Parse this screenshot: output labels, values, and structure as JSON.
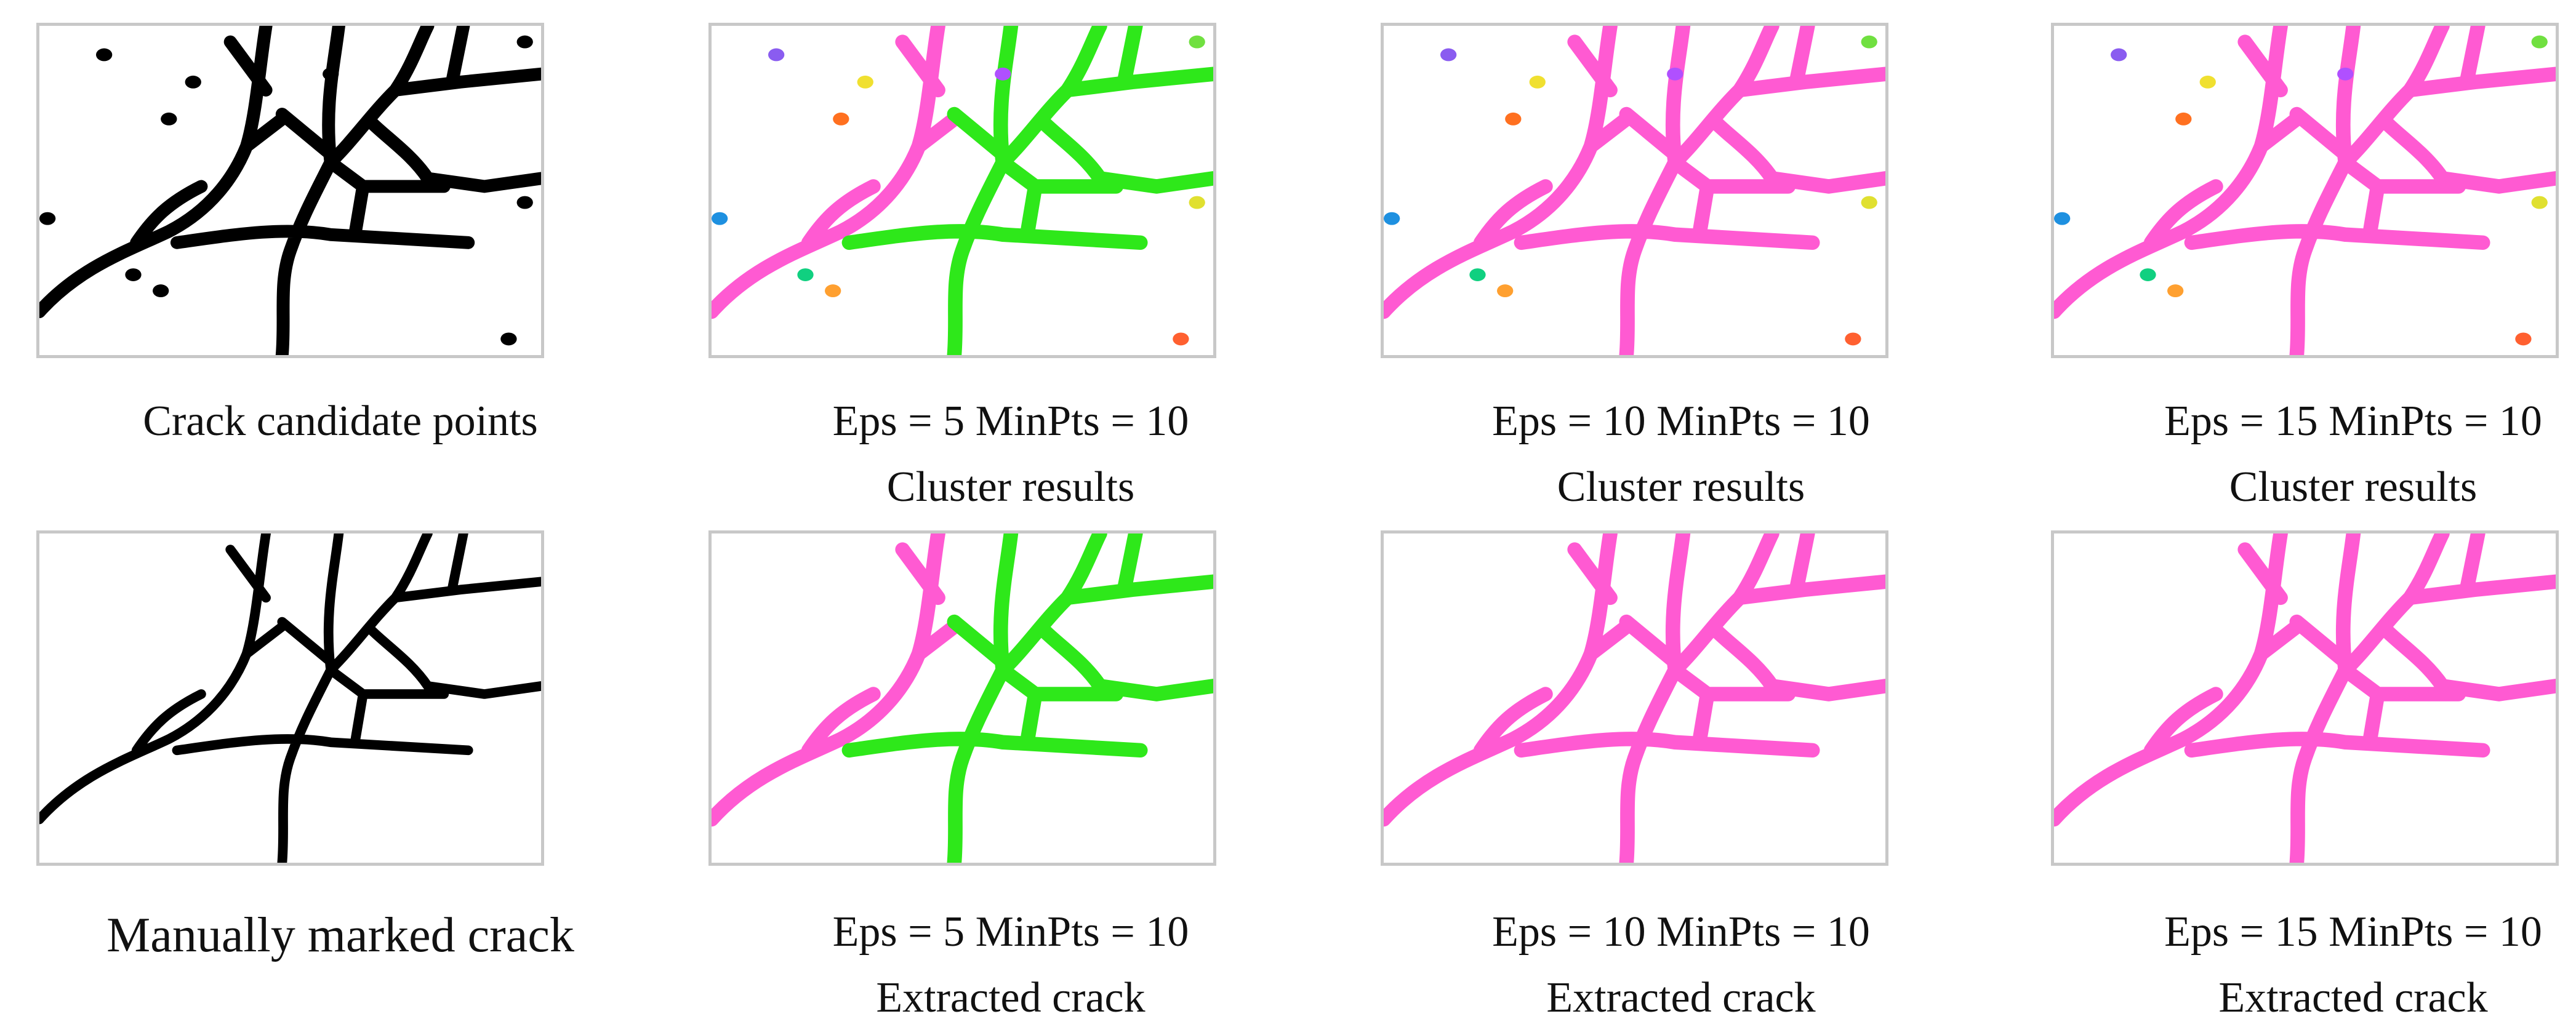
{
  "panels": [
    {
      "lines": [
        "Crack candidate points"
      ]
    },
    {
      "lines": [
        "Eps = 5 MinPts = 10",
        "Cluster results"
      ]
    },
    {
      "lines": [
        "Eps = 10 MinPts = 10",
        "Cluster results"
      ]
    },
    {
      "lines": [
        "Eps = 15 MinPts = 10",
        "Cluster results"
      ]
    },
    {
      "lines": [
        "Manually marked crack"
      ]
    },
    {
      "lines": [
        "Eps = 5 MinPts = 10",
        "Extracted crack"
      ]
    },
    {
      "lines": [
        "Eps = 10 MinPts = 10",
        "Extracted crack"
      ]
    },
    {
      "lines": [
        "Eps = 15 MinPts = 10",
        "Extracted crack"
      ]
    }
  ]
}
